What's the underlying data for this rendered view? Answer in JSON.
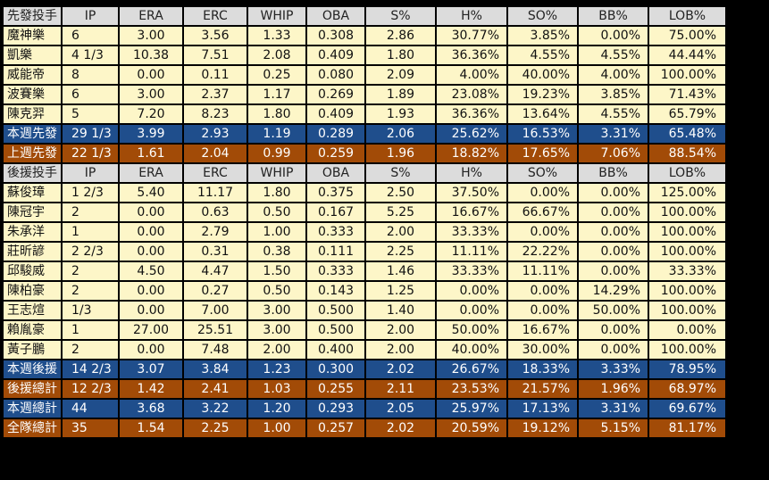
{
  "columns": [
    "IP",
    "ERA",
    "ERC",
    "WHIP",
    "OBA",
    "S%",
    "H%",
    "SO%",
    "BB%",
    "LOB%"
  ],
  "starters": {
    "header": "先發投手",
    "rows": [
      {
        "name": "魔神樂",
        "cells": [
          "6",
          "3.00",
          "3.56",
          "1.33",
          "0.308",
          "2.86",
          "30.77%",
          "3.85%",
          "0.00%",
          "75.00%"
        ]
      },
      {
        "name": "凱樂",
        "cells": [
          "4 1/3",
          "10.38",
          "7.51",
          "2.08",
          "0.409",
          "1.80",
          "36.36%",
          "4.55%",
          "4.55%",
          "44.44%"
        ]
      },
      {
        "name": "威能帝",
        "cells": [
          "8",
          "0.00",
          "0.11",
          "0.25",
          "0.080",
          "2.09",
          "4.00%",
          "40.00%",
          "4.00%",
          "100.00%"
        ]
      },
      {
        "name": "波賽樂",
        "cells": [
          "6",
          "3.00",
          "2.37",
          "1.17",
          "0.269",
          "1.89",
          "23.08%",
          "19.23%",
          "3.85%",
          "71.43%"
        ]
      },
      {
        "name": "陳克羿",
        "cells": [
          "5",
          "7.20",
          "8.23",
          "1.80",
          "0.409",
          "1.93",
          "36.36%",
          "13.64%",
          "4.55%",
          "65.79%"
        ]
      }
    ],
    "week_total": {
      "name": "本週先發",
      "cells": [
        "29 1/3",
        "3.99",
        "2.93",
        "1.19",
        "0.289",
        "2.06",
        "25.62%",
        "16.53%",
        "3.31%",
        "65.48%"
      ]
    },
    "last_week": {
      "name": "上週先發",
      "cells": [
        "22 1/3",
        "1.61",
        "2.04",
        "0.99",
        "0.259",
        "1.96",
        "18.82%",
        "17.65%",
        "7.06%",
        "88.54%"
      ]
    }
  },
  "relievers": {
    "header": "後援投手",
    "rows": [
      {
        "name": "蘇俊璋",
        "cells": [
          "1 2/3",
          "5.40",
          "11.17",
          "1.80",
          "0.375",
          "2.50",
          "37.50%",
          "0.00%",
          "0.00%",
          "125.00%"
        ]
      },
      {
        "name": "陳冠宇",
        "cells": [
          "2",
          "0.00",
          "0.63",
          "0.50",
          "0.167",
          "5.25",
          "16.67%",
          "66.67%",
          "0.00%",
          "100.00%"
        ]
      },
      {
        "name": "朱承洋",
        "cells": [
          "1",
          "0.00",
          "2.79",
          "1.00",
          "0.333",
          "2.00",
          "33.33%",
          "0.00%",
          "0.00%",
          "100.00%"
        ]
      },
      {
        "name": "莊昕諺",
        "cells": [
          "2 2/3",
          "0.00",
          "0.31",
          "0.38",
          "0.111",
          "2.25",
          "11.11%",
          "22.22%",
          "0.00%",
          "100.00%"
        ]
      },
      {
        "name": "邱駿威",
        "cells": [
          "2",
          "4.50",
          "4.47",
          "1.50",
          "0.333",
          "1.46",
          "33.33%",
          "11.11%",
          "0.00%",
          "33.33%"
        ]
      },
      {
        "name": "陳柏豪",
        "cells": [
          "2",
          "0.00",
          "0.27",
          "0.50",
          "0.143",
          "1.25",
          "0.00%",
          "0.00%",
          "14.29%",
          "100.00%"
        ]
      },
      {
        "name": "王志煊",
        "cells": [
          "1/3",
          "0.00",
          "7.00",
          "3.00",
          "0.500",
          "1.40",
          "0.00%",
          "0.00%",
          "50.00%",
          "100.00%"
        ]
      },
      {
        "name": "賴胤豪",
        "cells": [
          "1",
          "27.00",
          "25.51",
          "3.00",
          "0.500",
          "2.00",
          "50.00%",
          "16.67%",
          "0.00%",
          "0.00%"
        ]
      },
      {
        "name": "黃子鵬",
        "cells": [
          "2",
          "0.00",
          "7.48",
          "2.00",
          "0.400",
          "2.00",
          "40.00%",
          "30.00%",
          "0.00%",
          "100.00%"
        ]
      }
    ],
    "week_total": {
      "name": "本週後援",
      "cells": [
        "14 2/3",
        "3.07",
        "3.84",
        "1.23",
        "0.300",
        "2.02",
        "26.67%",
        "18.33%",
        "3.33%",
        "78.95%"
      ]
    },
    "season_total": {
      "name": "後援總計",
      "cells": [
        "12 2/3",
        "1.42",
        "2.41",
        "1.03",
        "0.255",
        "2.11",
        "23.53%",
        "21.57%",
        "1.96%",
        "68.97%"
      ]
    }
  },
  "totals": {
    "week_total": {
      "name": "本週總計",
      "cells": [
        "44",
        "3.68",
        "3.22",
        "1.20",
        "0.293",
        "2.05",
        "25.97%",
        "17.13%",
        "3.31%",
        "69.67%"
      ]
    },
    "team_total": {
      "name": "全隊總計",
      "cells": [
        "35",
        "1.54",
        "2.25",
        "1.00",
        "0.257",
        "2.02",
        "20.59%",
        "19.12%",
        "5.15%",
        "81.17%"
      ]
    }
  },
  "colors": {
    "header_bg": "#dcdcdc",
    "row_bg": "#fdf6c8",
    "blue_total_bg": "#1f4e8c",
    "brown_total_bg": "#a24b07",
    "border": "#000000"
  }
}
